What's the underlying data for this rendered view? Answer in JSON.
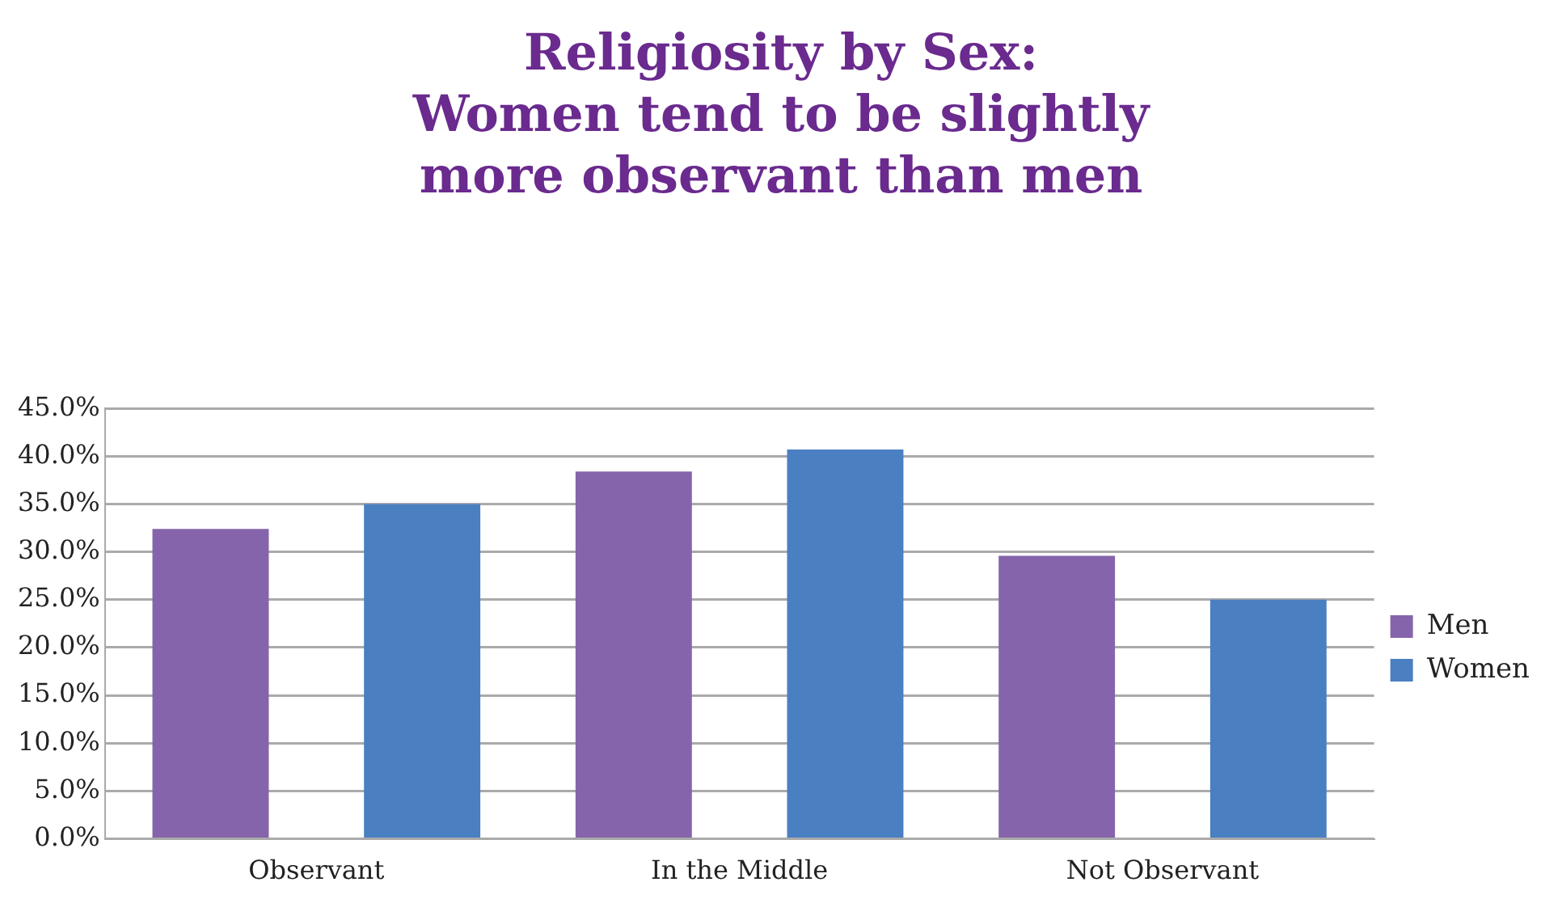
{
  "chart_data": {
    "type": "bar",
    "title": "Religiosity by Sex:\nWomen tend to be slightly\nmore observant  than men",
    "categories": [
      "Observant",
      "In the Middle",
      "Not Observant"
    ],
    "series": [
      {
        "name": "Men",
        "color": "#8664ab",
        "values": [
          32.4,
          38.4,
          29.6
        ]
      },
      {
        "name": "Women",
        "color": "#4a7fc1",
        "values": [
          35.0,
          40.7,
          25.0
        ]
      }
    ],
    "ylim": [
      0,
      45
    ],
    "yticks": [
      {
        "value": 0,
        "label": "0.0%"
      },
      {
        "value": 5,
        "label": "5.0%"
      },
      {
        "value": 10,
        "label": "10.0%"
      },
      {
        "value": 15,
        "label": "15.0%"
      },
      {
        "value": 20,
        "label": "20.0%"
      },
      {
        "value": 25,
        "label": "25.0%"
      },
      {
        "value": 30,
        "label": "30.0%"
      },
      {
        "value": 35,
        "label": "35.0%"
      },
      {
        "value": 40,
        "label": "40.0%"
      },
      {
        "value": 45,
        "label": "45.0%"
      }
    ],
    "grid": "y",
    "legend": "right"
  }
}
